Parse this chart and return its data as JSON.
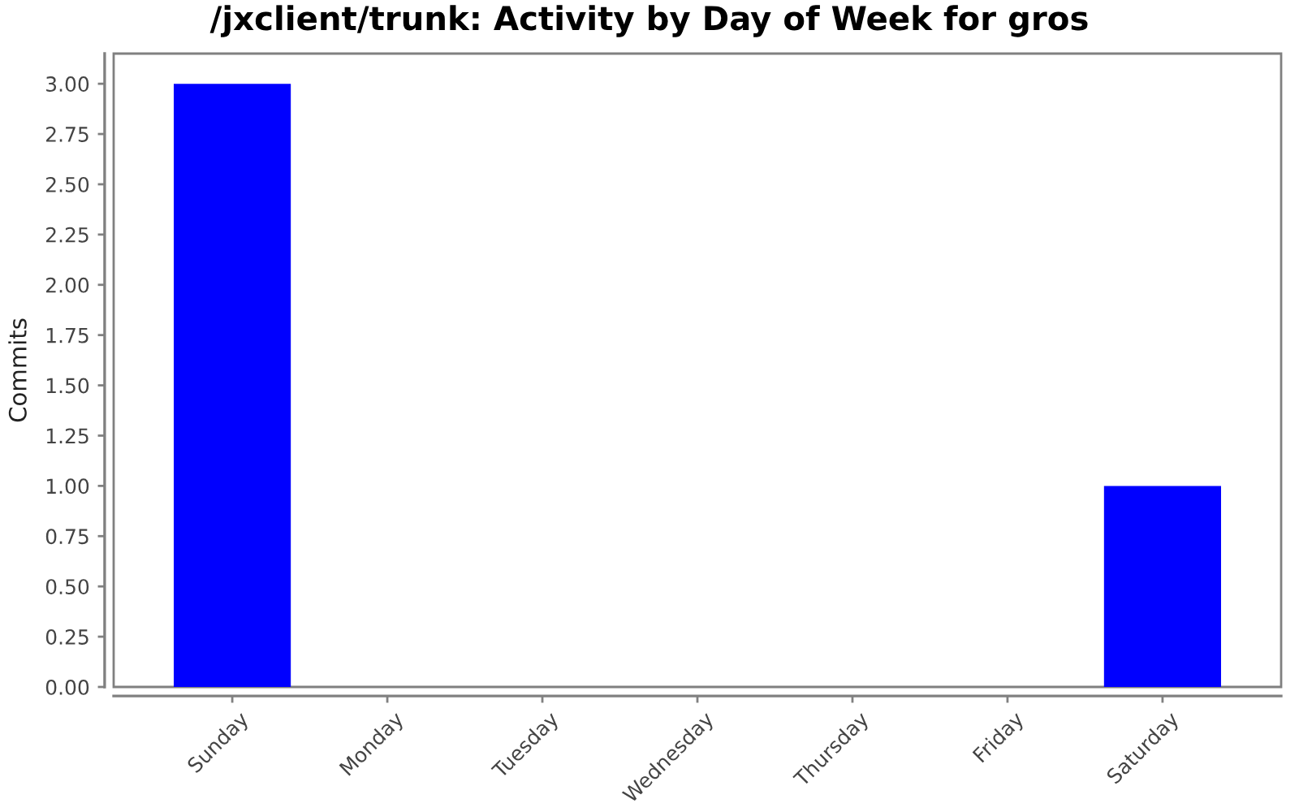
{
  "chart_data": {
    "type": "bar",
    "title": "/jxclient/trunk: Activity by Day of Week for gros",
    "ylabel": "Commits",
    "categories": [
      "Sunday",
      "Monday",
      "Tuesday",
      "Wednesday",
      "Thursday",
      "Friday",
      "Saturday"
    ],
    "values": [
      3,
      0,
      0,
      0,
      0,
      0,
      1
    ],
    "color": "#0000ff",
    "ylim": [
      0,
      3.15
    ],
    "yticks": [
      {
        "value": 0,
        "label": "0.00"
      },
      {
        "value": 0.25,
        "label": "0.25"
      },
      {
        "value": 0.5,
        "label": "0.50"
      },
      {
        "value": 0.75,
        "label": "0.75"
      },
      {
        "value": 1,
        "label": "1.00"
      },
      {
        "value": 1.25,
        "label": "1.25"
      },
      {
        "value": 1.5,
        "label": "1.50"
      },
      {
        "value": 1.75,
        "label": "1.75"
      },
      {
        "value": 2,
        "label": "2.00"
      },
      {
        "value": 2.25,
        "label": "2.25"
      },
      {
        "value": 2.5,
        "label": "2.50"
      },
      {
        "value": 2.75,
        "label": "2.75"
      },
      {
        "value": 3,
        "label": "3.00"
      }
    ]
  }
}
